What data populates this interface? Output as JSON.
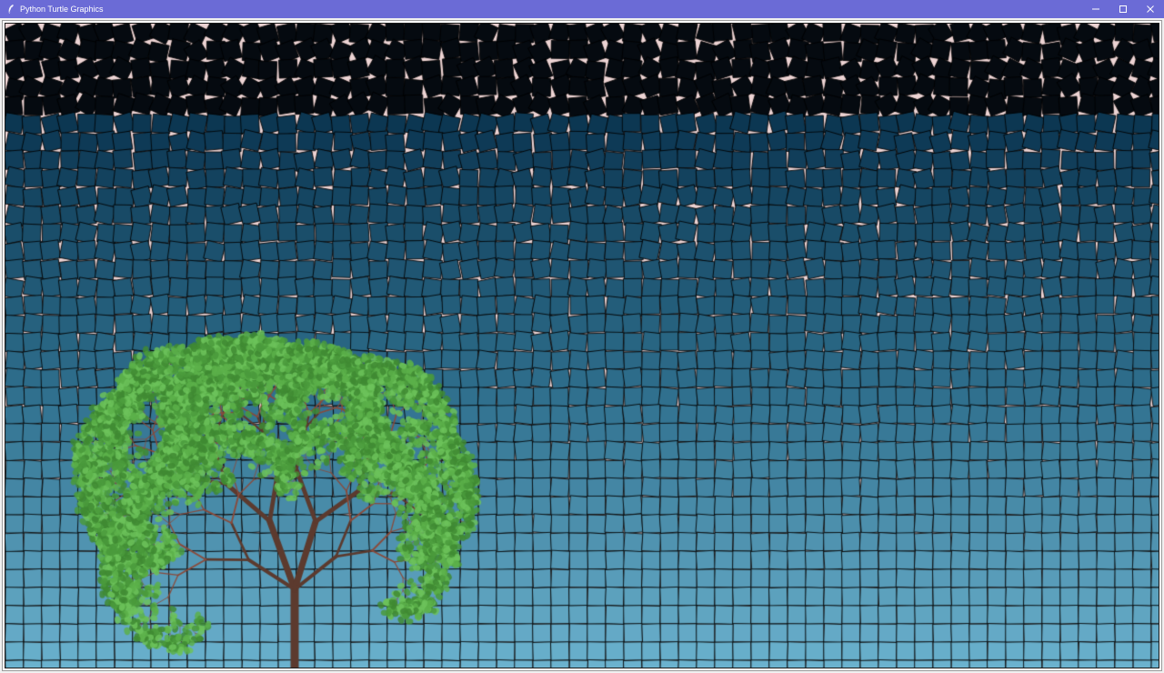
{
  "window": {
    "title": "Python Turtle Graphics",
    "titlebar_color": "#6b6bd6",
    "icon": "feather-icon"
  },
  "controls": {
    "minimize_icon": "minimize-icon",
    "maximize_icon": "maximize-icon",
    "close_icon": "close-icon"
  },
  "canvas": {
    "background": "#ecd3d3",
    "tile_color_top": "#050a10",
    "tile_color_mid": "#2e6e8c",
    "tile_color_bottom": "#6db4d0",
    "tile_outline": "#000000",
    "tree_trunk_color": "#5c3a2e",
    "branch_color": "#8b4a3a",
    "leaf_colors": [
      "#4a9a3c",
      "#5cb04a",
      "#6cc25a",
      "#3f8a33"
    ]
  }
}
